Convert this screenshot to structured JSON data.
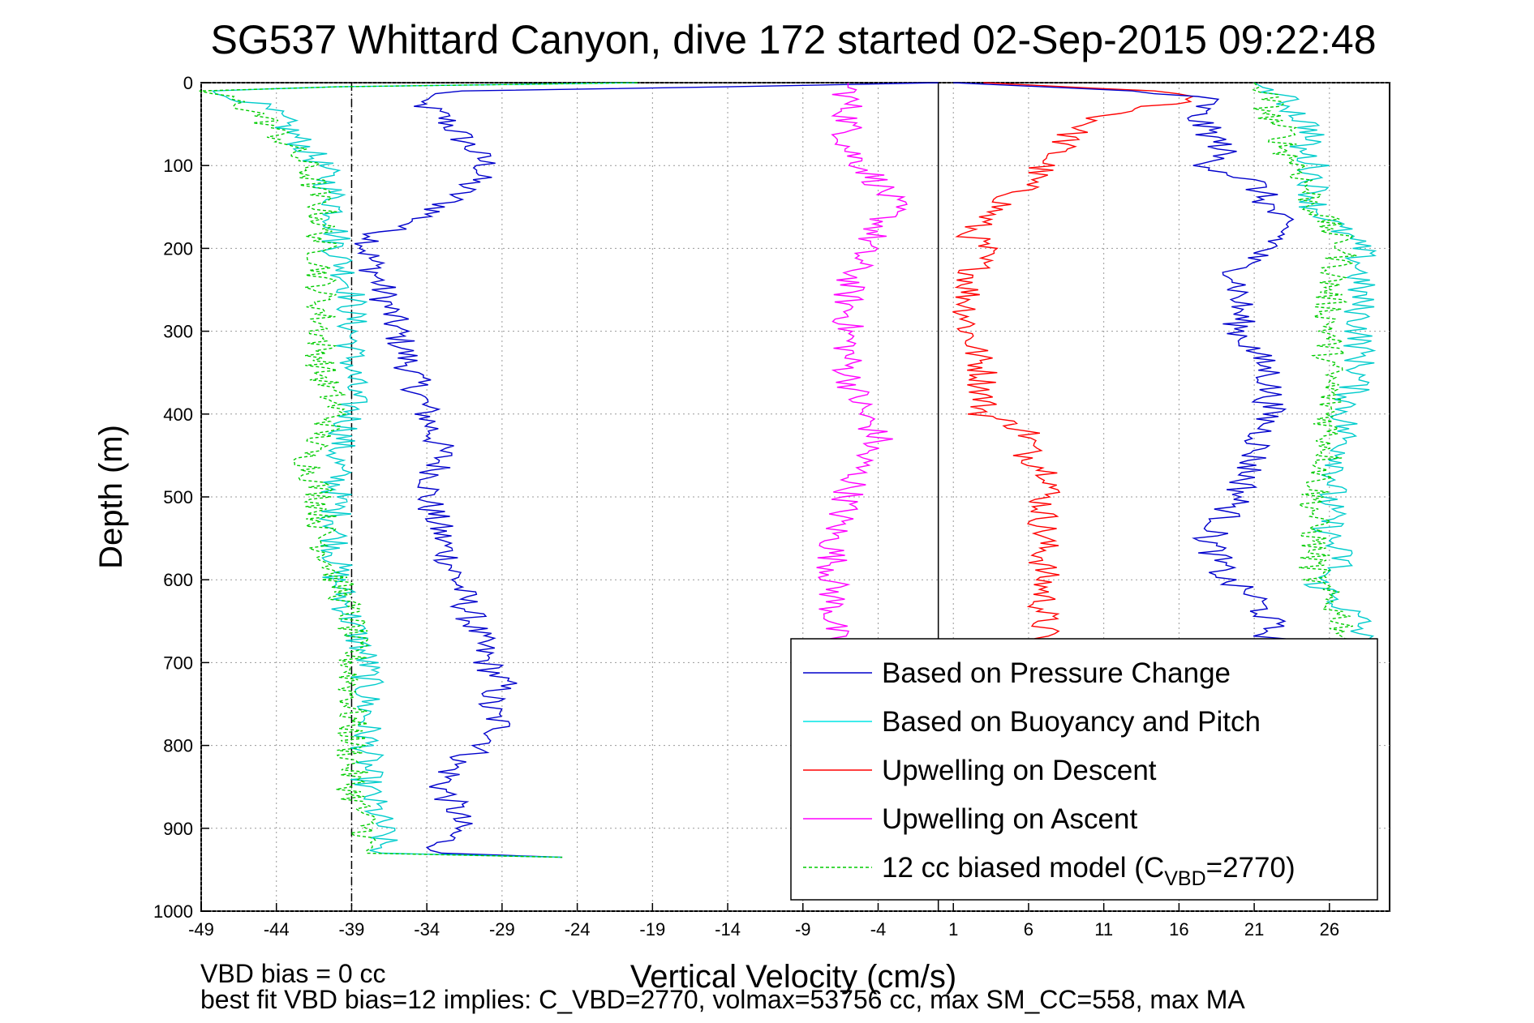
{
  "chart_data": {
    "type": "line",
    "title": "SG537 Whittard Canyon, dive 172 started 02-Sep-2015 09:22:48",
    "xlabel": "Vertical Velocity (cm/s)",
    "ylabel": "Depth (m)",
    "xlim": [
      -49,
      30
    ],
    "ylim": [
      0,
      1000
    ],
    "y_reversed": true,
    "grid": true,
    "legend_position": "bottom-right",
    "xticks": [
      -49,
      -44,
      -39,
      -34,
      -29,
      -24,
      -19,
      -14,
      -9,
      -4,
      1,
      6,
      11,
      16,
      21,
      26
    ],
    "yticks": [
      0,
      100,
      200,
      300,
      400,
      500,
      600,
      700,
      800,
      900,
      1000
    ],
    "vbd_reference_x": -39,
    "zero_line_x": 0,
    "series": [
      {
        "name": "Based on Pressure Change",
        "color": "#0000cc",
        "style": "solid",
        "depth": [
          0,
          5,
          10,
          20,
          40,
          60,
          80,
          100,
          120,
          150,
          170,
          180,
          200,
          250,
          300,
          350,
          400,
          450,
          500,
          550,
          600,
          650,
          700,
          725,
          750,
          780,
          800,
          820,
          850,
          880,
          900,
          920,
          930,
          935
        ],
        "velocity": [
          0,
          -14,
          -32,
          -35,
          -33,
          -32,
          -31,
          -30,
          -31,
          -33,
          -35,
          -37,
          -38,
          -37,
          -36,
          -35,
          -34,
          -33,
          -34,
          -33,
          -32,
          -31,
          -30,
          -29,
          -30,
          -29,
          -30,
          -32,
          -33,
          -32,
          -32,
          -33,
          -33,
          -25
        ]
      },
      {
        "name": "Based on Buoyancy and Pitch",
        "color": "#00cccc",
        "style": "solid",
        "depth": [
          0,
          5,
          10,
          20,
          40,
          60,
          80,
          100,
          150,
          200,
          250,
          300,
          350,
          400,
          450,
          500,
          550,
          600,
          650,
          700,
          750,
          800,
          850,
          900,
          920,
          930,
          935
        ],
        "velocity": [
          -20,
          -40,
          -49,
          -46,
          -44,
          -43,
          -42,
          -41,
          -40,
          -40,
          -39,
          -39,
          -39,
          -39,
          -40,
          -40,
          -40,
          -40,
          -39,
          -38,
          -38,
          -38,
          -38,
          -37,
          -37,
          -37,
          -25
        ]
      },
      {
        "name": "Upwelling on Descent",
        "color": "#ff0000",
        "style": "solid",
        "depth": [
          0,
          10,
          20,
          40,
          60,
          80,
          100,
          120,
          150,
          180,
          200,
          250,
          300,
          350,
          400,
          420,
          450,
          480,
          500,
          550,
          600,
          650,
          680
        ],
        "velocity": [
          3,
          14,
          17,
          11,
          9,
          8,
          7,
          6,
          4,
          2,
          3,
          2,
          2,
          3,
          3,
          6,
          6,
          8,
          7,
          7,
          7,
          7,
          7
        ]
      },
      {
        "name": "Upwelling on Ascent",
        "color": "#ff00ff",
        "style": "solid",
        "depth": [
          0,
          20,
          40,
          60,
          80,
          100,
          120,
          150,
          200,
          250,
          300,
          350,
          400,
          430,
          450,
          500,
          550,
          600,
          650,
          680
        ],
        "velocity": [
          -6,
          -6,
          -6,
          -6,
          -6,
          -5,
          -4,
          -3,
          -5,
          -6,
          -6,
          -6,
          -5,
          -4,
          -5,
          -6,
          -7,
          -7,
          -7,
          -7
        ]
      },
      {
        "name": "12 cc biased model (C_VBD=2770)",
        "color": "#00cc00",
        "style": "dashed",
        "depth": [
          0,
          5,
          10,
          20,
          40,
          60,
          80,
          100,
          150,
          200,
          250,
          300,
          350,
          400,
          450,
          500,
          550,
          600,
          650,
          700,
          750,
          800,
          850,
          900,
          920,
          930,
          935
        ],
        "velocity": [
          -20,
          -40,
          -49,
          -47,
          -45,
          -44,
          -43,
          -42,
          -41,
          -41,
          -41,
          -41,
          -41,
          -40,
          -42,
          -41,
          -41,
          -40,
          -39,
          -39,
          -39,
          -39,
          -39,
          -38,
          -38,
          -38,
          -25
        ]
      },
      {
        "name": "",
        "color": "#0000cc",
        "style": "solid",
        "depth": [
          0,
          10,
          20,
          40,
          60,
          80,
          100,
          120,
          150,
          180,
          200,
          220,
          250,
          300,
          350,
          400,
          450,
          500,
          550,
          600,
          620,
          650,
          680
        ],
        "velocity": [
          1,
          13,
          18,
          17,
          18,
          19,
          18,
          21,
          22,
          23,
          22,
          20,
          20,
          20,
          22,
          22,
          21,
          20,
          18,
          19,
          21,
          22,
          22
        ]
      },
      {
        "name": "",
        "color": "#00cccc",
        "style": "solid",
        "depth": [
          0,
          20,
          40,
          60,
          80,
          100,
          150,
          200,
          250,
          300,
          350,
          400,
          450,
          500,
          550,
          580,
          600,
          650,
          680
        ],
        "velocity": [
          21,
          23,
          24,
          25,
          24,
          25,
          25,
          28,
          28,
          28,
          28,
          27,
          27,
          26,
          26,
          27,
          25,
          28,
          28
        ]
      },
      {
        "name": "",
        "color": "#00cc00",
        "style": "dashed",
        "depth": [
          0,
          20,
          40,
          60,
          80,
          100,
          150,
          200,
          250,
          300,
          350,
          400,
          450,
          500,
          550,
          600,
          650,
          680
        ],
        "velocity": [
          21,
          22,
          22,
          23,
          23,
          24,
          25,
          27,
          26,
          26,
          26,
          26,
          26,
          25,
          25,
          25,
          27,
          27
        ]
      }
    ],
    "legend_entries": [
      {
        "label": "Based on Pressure Change",
        "color": "#0000cc",
        "style": "solid"
      },
      {
        "label": "Based on Buoyancy and Pitch",
        "color": "#00e5e5",
        "style": "solid"
      },
      {
        "label": "Upwelling on Descent",
        "color": "#ff0000",
        "style": "solid"
      },
      {
        "label": "Upwelling on Ascent",
        "color": "#ff00ff",
        "style": "solid"
      },
      {
        "label_main": "12 cc biased model (C",
        "label_sub": "VBD",
        "label_tail": "=2770)",
        "color": "#00cc00",
        "style": "dashed"
      }
    ],
    "footnotes": {
      "line1": "VBD bias = 0 cc",
      "line2": "best fit VBD bias=12 implies: C_VBD=2770, volmax=53756 cc, max SM_CC=558, max MA"
    }
  }
}
